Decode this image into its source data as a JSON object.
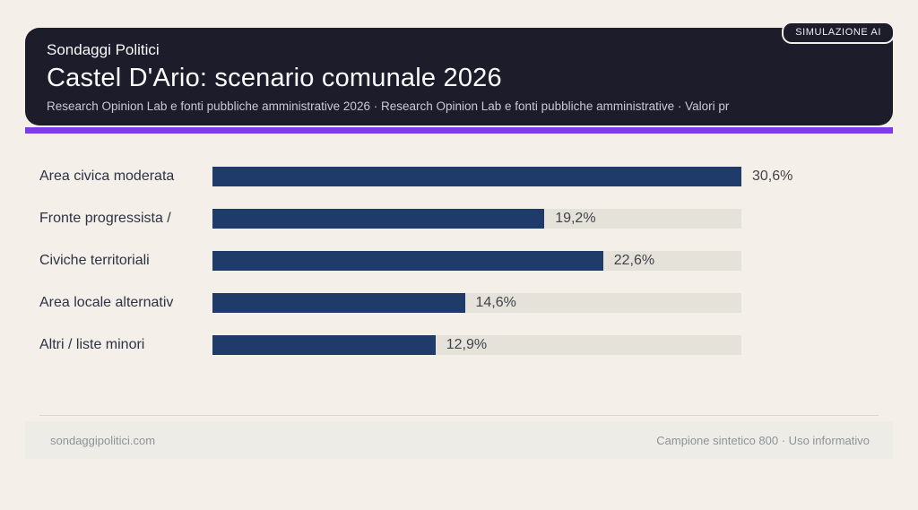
{
  "badge": {
    "label": "SIMULAZIONE AI"
  },
  "header": {
    "kicker": "Sondaggi Politici",
    "title": "Castel D'Ario: scenario comunale 2026",
    "subtitle": "Research Opinion Lab e fonti pubbliche amministrative 2026 · Research Opinion Lab e fonti pubbliche amministrative · Valori pr"
  },
  "chart_data": {
    "type": "bar",
    "orientation": "horizontal",
    "title": "Castel D'Ario: scenario comunale 2026",
    "categories": [
      "Area civica moderata",
      "Fronte progressista /",
      "Civiche territoriali",
      "Area locale alternativ",
      "Altri / liste minori"
    ],
    "values": [
      30.6,
      19.2,
      22.6,
      14.6,
      12.9
    ],
    "value_labels": [
      "30,6%",
      "19,2%",
      "22,6%",
      "14,6%",
      "12,9%"
    ],
    "xlim": [
      0,
      30.6
    ],
    "grid": false,
    "legend": false
  },
  "footer": {
    "left": "sondaggipolitici.com",
    "right": "Campione sintetico 800 · Uso informativo"
  },
  "colors": {
    "page_bg": "#f4efe8",
    "card_bg": "#1c1c2b",
    "accent": "#7d3bec",
    "bar": "#1f3b69",
    "track": "#e5e2da"
  }
}
